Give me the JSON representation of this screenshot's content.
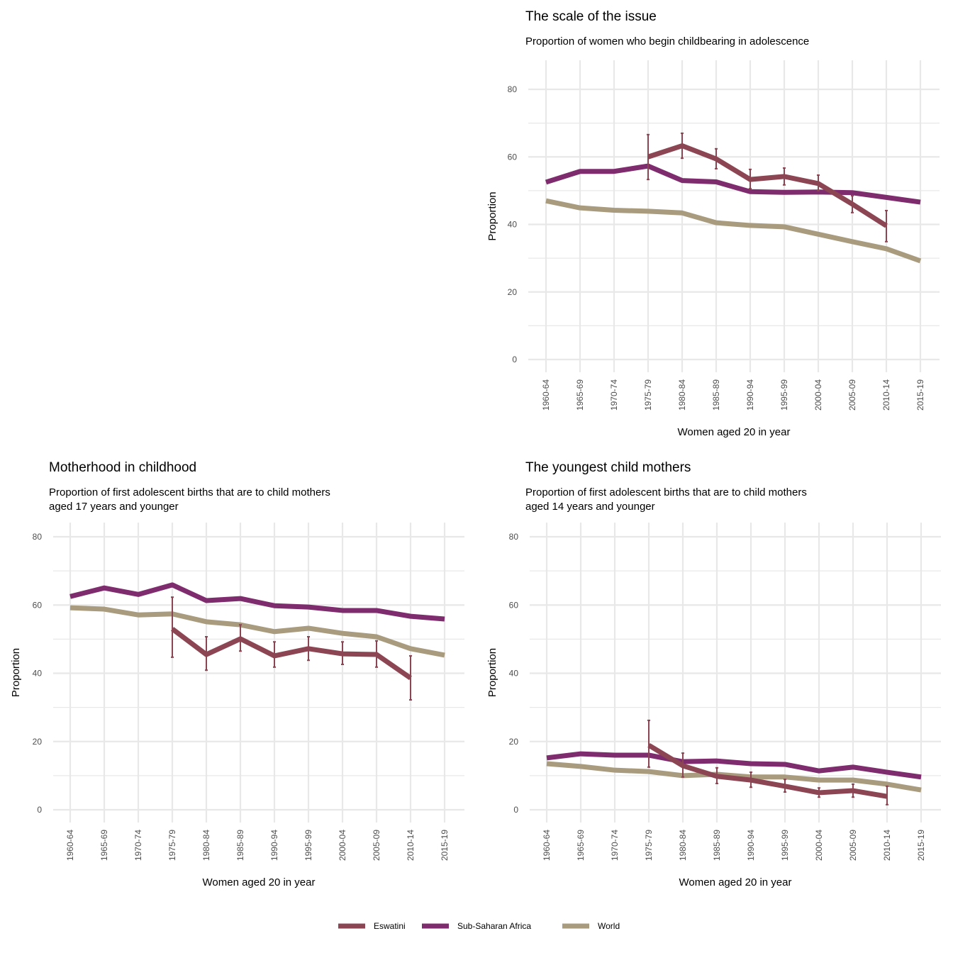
{
  "colors": {
    "Eswatini": "#8b4553",
    "Sub-Saharan Africa": "#7f2c6e",
    "World": "#a89b7e",
    "grid": "#e8e8e8"
  },
  "legend": {
    "position": "bottom",
    "items": [
      "Eswatini",
      "Sub-Saharan Africa",
      "World"
    ]
  },
  "chart_data": [
    {
      "type": "line",
      "title": "The scale of the issue",
      "subtitle": [
        "Proportion of women who begin childbearing in adolescence"
      ],
      "xlabel": "Women aged 20 in year",
      "ylabel": "Proportion",
      "ylim": [
        0,
        80
      ],
      "yticks": [
        "0",
        "20",
        "40",
        "60",
        "80"
      ],
      "grid": true,
      "categories": [
        "1960-64",
        "1965-69",
        "1970-74",
        "1975-79",
        "1980-84",
        "1985-89",
        "1990-94",
        "1995-99",
        "2000-04",
        "2005-09",
        "2010-14",
        "2015-19"
      ],
      "series": [
        {
          "name": "World",
          "values": [
            47.0,
            44.9,
            44.2,
            43.9,
            43.4,
            40.5,
            39.7,
            39.3,
            37.1,
            34.9,
            32.8,
            29.2
          ]
        },
        {
          "name": "Sub-Saharan Africa",
          "values": [
            52.5,
            55.7,
            55.7,
            57.3,
            53.0,
            52.6,
            49.7,
            49.5,
            49.6,
            49.4,
            48.0,
            46.6
          ]
        },
        {
          "name": "Eswatini",
          "values": [
            null,
            null,
            null,
            60.0,
            63.3,
            59.4,
            53.3,
            54.2,
            52.1,
            46.0,
            39.6,
            null
          ],
          "error_low": [
            null,
            null,
            null,
            53.3,
            59.6,
            56.5,
            50.6,
            51.7,
            50.0,
            43.5,
            34.9,
            null
          ],
          "error_high": [
            null,
            null,
            null,
            66.6,
            67.0,
            62.4,
            56.3,
            56.7,
            54.6,
            48.5,
            44.1,
            null
          ]
        }
      ]
    },
    {
      "type": "line",
      "title": "Motherhood in childhood",
      "subtitle": [
        "Proportion of first adolescent births that are to child mothers",
        "aged 17 years and younger"
      ],
      "xlabel": "Women aged 20 in year",
      "ylabel": "Proportion",
      "ylim": [
        0,
        80
      ],
      "yticks": [
        "0",
        "20",
        "40",
        "60",
        "80"
      ],
      "grid": true,
      "categories": [
        "1960-64",
        "1965-69",
        "1970-74",
        "1975-79",
        "1980-84",
        "1985-89",
        "1990-94",
        "1995-99",
        "2000-04",
        "2005-09",
        "2010-14",
        "2015-19"
      ],
      "series": [
        {
          "name": "World",
          "values": [
            59.2,
            58.8,
            57.1,
            57.4,
            55.1,
            54.2,
            52.2,
            53.2,
            51.7,
            50.7,
            47.2,
            45.3
          ]
        },
        {
          "name": "Sub-Saharan Africa",
          "values": [
            62.5,
            65.0,
            63.1,
            65.9,
            61.3,
            61.9,
            59.8,
            59.4,
            58.4,
            58.4,
            56.7,
            55.9
          ]
        },
        {
          "name": "Eswatini",
          "values": [
            null,
            null,
            null,
            53.0,
            45.5,
            50.1,
            45.1,
            47.2,
            45.7,
            45.5,
            38.6,
            null
          ],
          "error_low": [
            null,
            null,
            null,
            44.7,
            40.9,
            46.5,
            41.8,
            43.8,
            42.6,
            41.8,
            32.2,
            null
          ],
          "error_high": [
            null,
            null,
            null,
            62.3,
            50.7,
            54.2,
            49.2,
            50.7,
            49.2,
            49.5,
            45.1,
            null
          ]
        }
      ]
    },
    {
      "type": "line",
      "title": "The youngest child mothers",
      "subtitle": [
        "Proportion of first adolescent births that are to child mothers",
        "aged 14 years and younger"
      ],
      "xlabel": "Women aged 20 in year",
      "ylabel": "Proportion",
      "ylim": [
        0,
        80
      ],
      "yticks": [
        "0",
        "20",
        "40",
        "60",
        "80"
      ],
      "grid": true,
      "categories": [
        "1960-64",
        "1965-69",
        "1970-74",
        "1975-79",
        "1980-84",
        "1985-89",
        "1990-94",
        "1995-99",
        "2000-04",
        "2005-09",
        "2010-14",
        "2015-19"
      ],
      "series": [
        {
          "name": "World",
          "values": [
            13.5,
            12.7,
            11.6,
            11.2,
            10.0,
            10.4,
            9.6,
            9.6,
            8.7,
            8.7,
            7.5,
            5.8
          ]
        },
        {
          "name": "Sub-Saharan Africa",
          "values": [
            15.2,
            16.4,
            16.0,
            16.0,
            14.1,
            14.3,
            13.5,
            13.3,
            11.4,
            12.5,
            11.0,
            9.6
          ]
        },
        {
          "name": "Eswatini",
          "values": [
            null,
            null,
            null,
            18.9,
            12.9,
            9.8,
            8.7,
            6.9,
            5.0,
            5.6,
            3.9,
            null
          ],
          "error_low": [
            null,
            null,
            null,
            12.5,
            9.6,
            7.7,
            6.6,
            5.2,
            3.7,
            3.7,
            1.5,
            null
          ],
          "error_high": [
            null,
            null,
            null,
            26.2,
            16.6,
            12.3,
            11.0,
            8.9,
            6.4,
            7.5,
            6.9,
            null
          ]
        }
      ]
    }
  ]
}
